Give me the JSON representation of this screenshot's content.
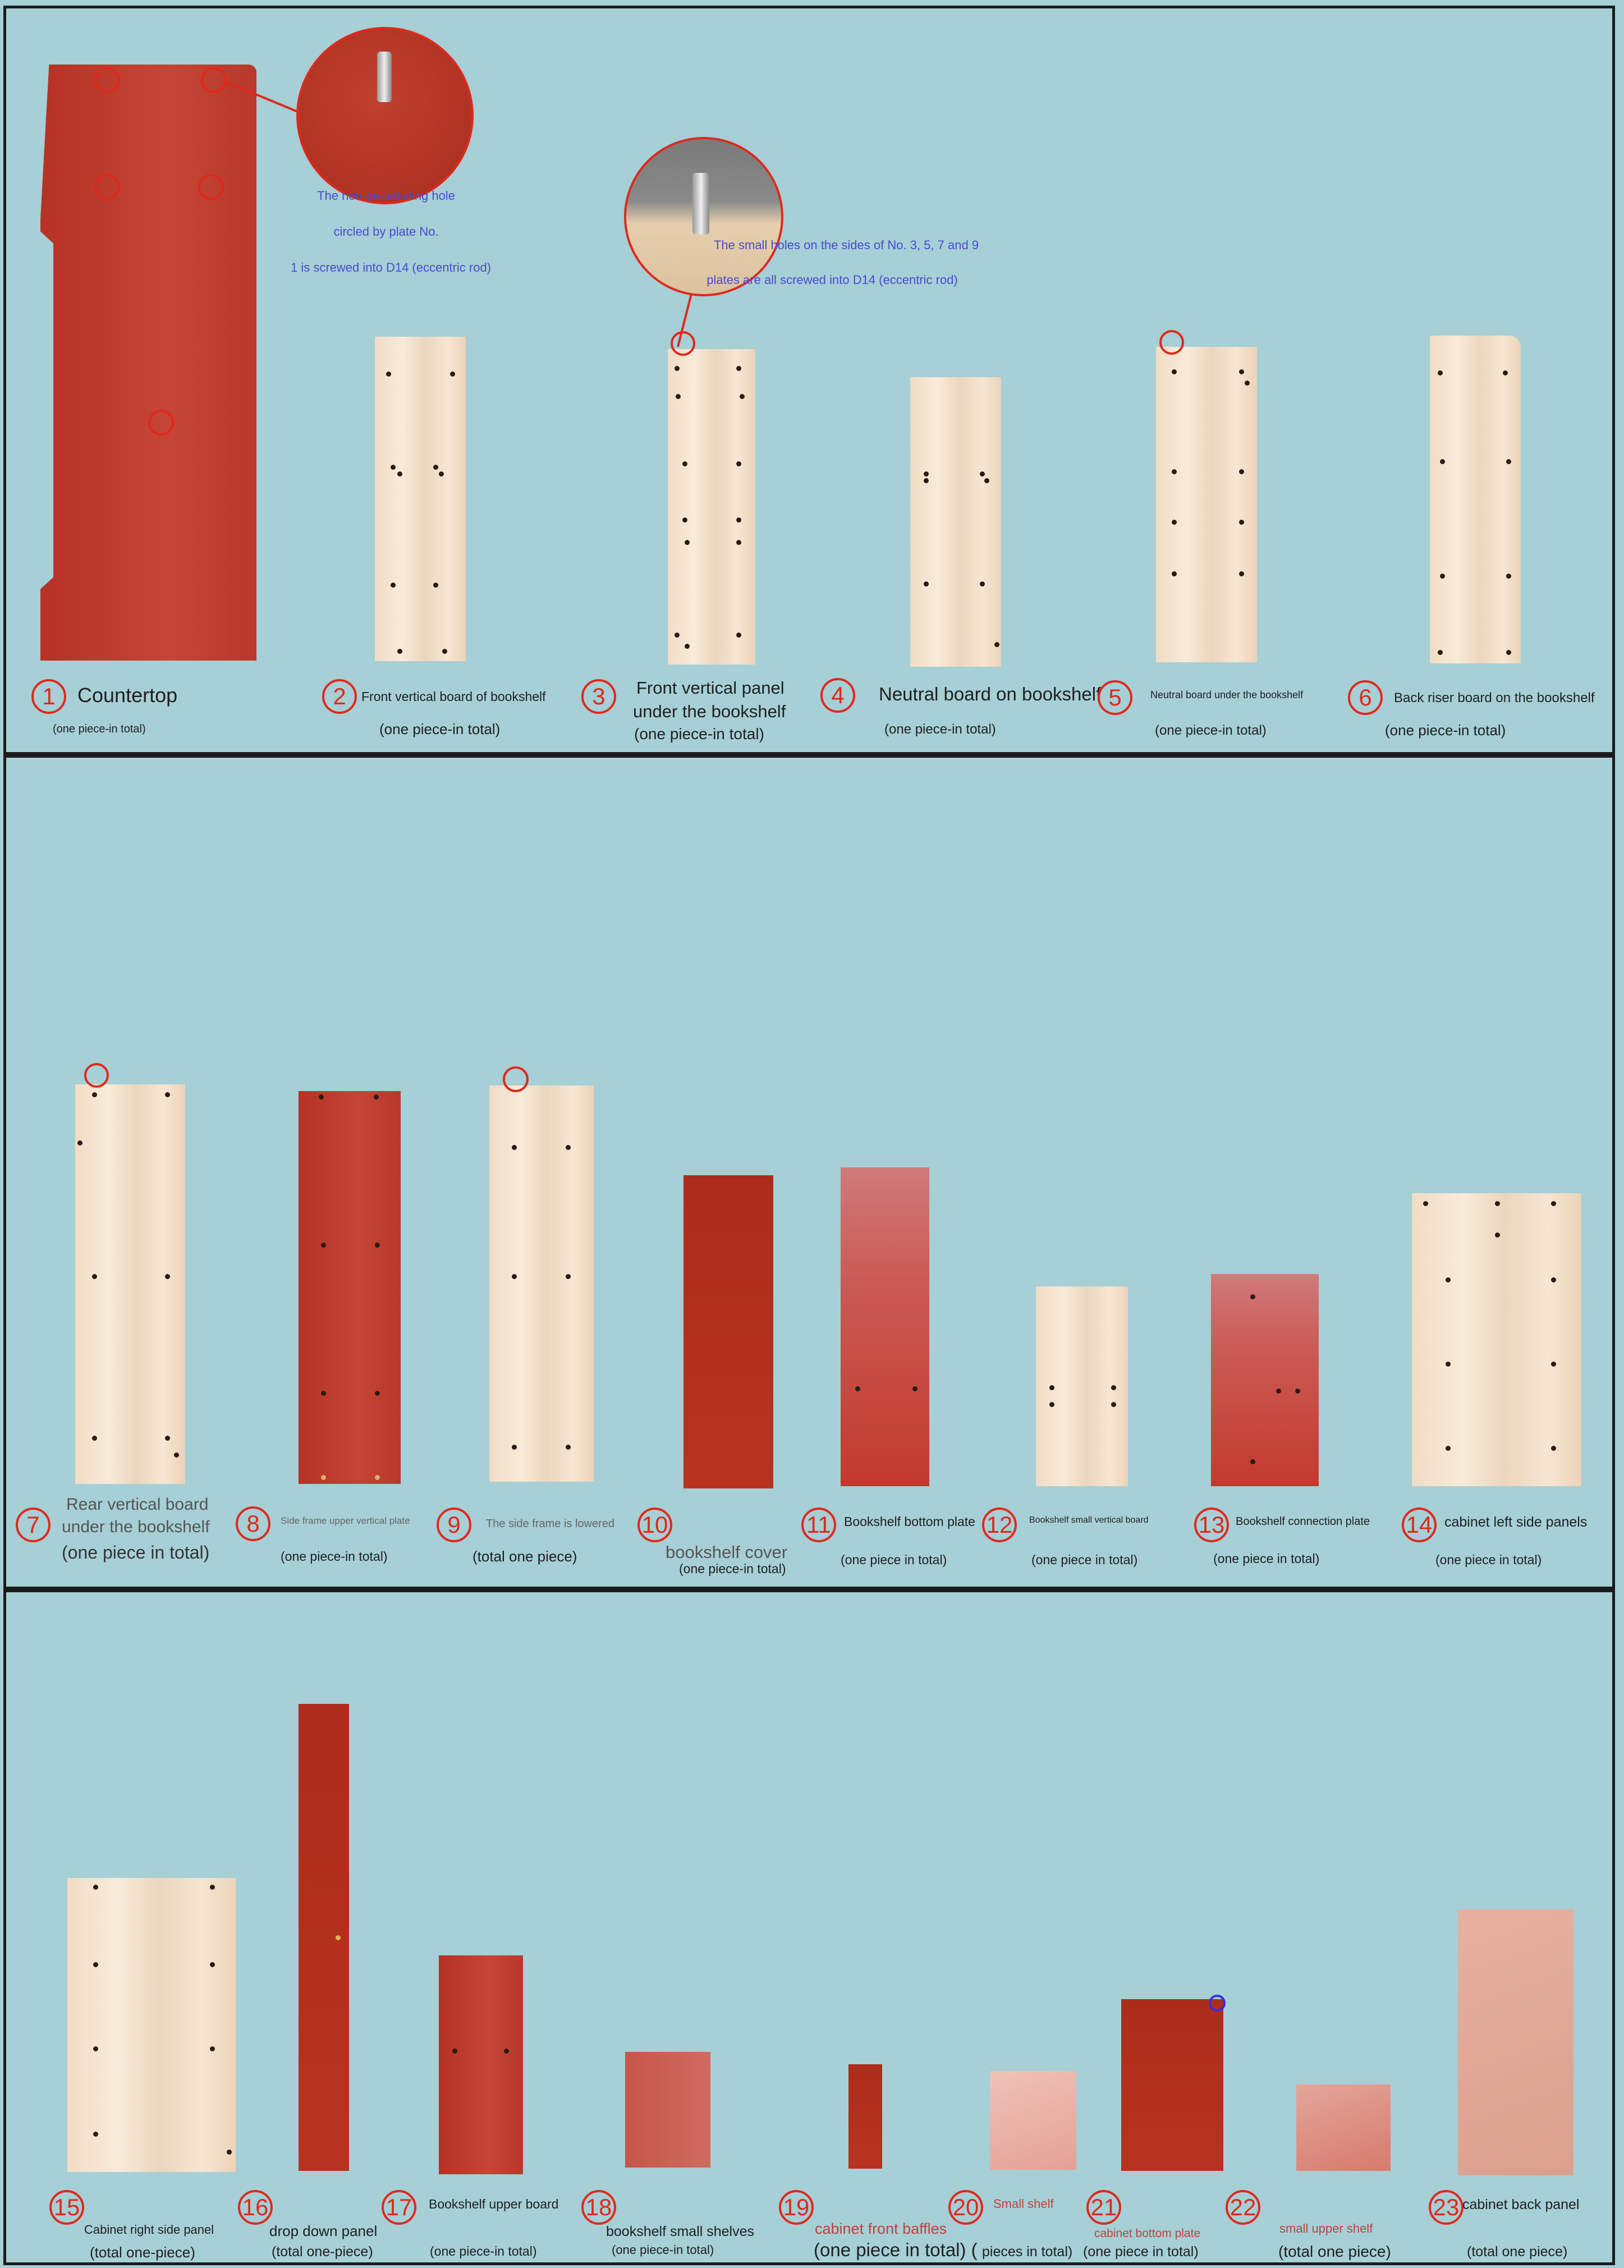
{
  "notes": {
    "note1_line1": "The non-penetrating hole",
    "note1_line2": "circled by plate No.",
    "note1_line3": "1 is screwed into D14 (eccentric rod)",
    "note2_line1": "The small holes on the sides of No. 3, 5, 7 and 9",
    "note2_line2": "plates are all screwed into D14 (eccentric rod)"
  },
  "parts": [
    {
      "num": "1",
      "name": "Countertop",
      "qty": "(one piece-in total)"
    },
    {
      "num": "2",
      "name": "Front vertical board of bookshelf",
      "qty": "(one piece-in total)"
    },
    {
      "num": "3",
      "name_line1": "Front vertical panel",
      "name_line2": "under the bookshelf",
      "qty": "(one piece-in total)"
    },
    {
      "num": "4",
      "name": "Neutral board on bookshelf",
      "qty": "(one piece-in total)"
    },
    {
      "num": "5",
      "name": "Neutral board under the bookshelf",
      "qty": "(one piece-in total)"
    },
    {
      "num": "6",
      "name": "Back riser board on the bookshelf",
      "qty": "(one piece-in total)"
    },
    {
      "num": "7",
      "name_line1": "Rear vertical board",
      "name_line2": "under the bookshelf",
      "qty": "(one piece in total)"
    },
    {
      "num": "8",
      "name": "Side frame upper vertical plate",
      "qty": "(one piece-in total)"
    },
    {
      "num": "9",
      "name": "The side frame is lowered",
      "qty": "(total one piece)"
    },
    {
      "num": "10",
      "name": "bookshelf cover",
      "qty": "(one piece-in total)"
    },
    {
      "num": "11",
      "name": "Bookshelf bottom plate",
      "qty": "(one piece in total)"
    },
    {
      "num": "12",
      "name": "Bookshelf small vertical board",
      "qty": "(one piece in total)"
    },
    {
      "num": "13",
      "name": "Bookshelf connection plate",
      "qty": "(one piece in total)"
    },
    {
      "num": "14",
      "name": "cabinet left side panels",
      "qty": "(one piece in total)"
    },
    {
      "num": "15",
      "name": "Cabinet right side panel",
      "qty": "(total one-piece)"
    },
    {
      "num": "16",
      "name": "drop down panel",
      "qty": "(total one-piece)"
    },
    {
      "num": "17",
      "name": "Bookshelf upper board",
      "qty": "(one piece-in total)"
    },
    {
      "num": "18",
      "name": "bookshelf small shelves",
      "qty": "(one piece-in total)"
    },
    {
      "num": "19",
      "name": "cabinet front baffles",
      "qty": "(one piece in total) ("
    },
    {
      "num": "20",
      "name": "Small shelf",
      "qty": "pieces in total)"
    },
    {
      "num": "21",
      "name": "cabinet bottom plate",
      "qty": "(one piece in total)"
    },
    {
      "num": "22",
      "name": "small upper shelf",
      "qty": "(total one piece)"
    },
    {
      "num": "23",
      "name": "cabinet back panel",
      "qty": "(total one piece)"
    }
  ]
}
